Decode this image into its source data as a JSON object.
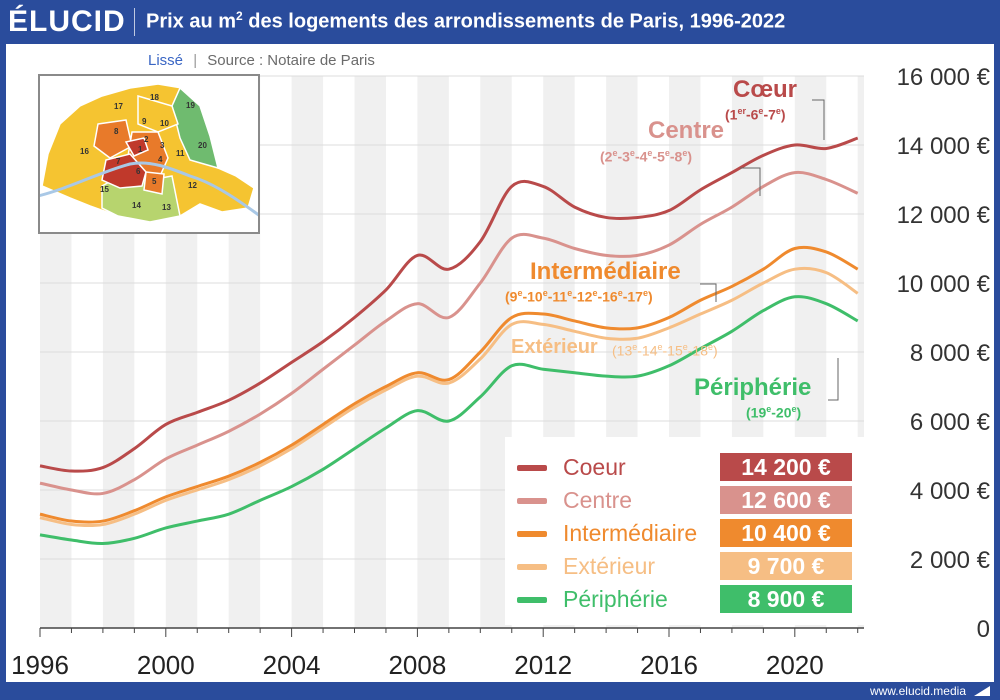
{
  "header": {
    "logo": "ÉLUCID",
    "title_pre": "Prix au m",
    "title_sup": "2",
    "title_post": " des logements des arrondissements de Paris, 1996-2022"
  },
  "subtitle": {
    "smoothing": "Lissé",
    "separator": "|",
    "source": "Source : Notaire de Paris"
  },
  "footer": {
    "site": "www.elucid.media"
  },
  "colors": {
    "coeur": "#b94a4a",
    "centre": "#d9928d",
    "intermediaire": "#ef8a2e",
    "exterieur": "#f6be84",
    "peripherie": "#3fbe6a"
  },
  "map": {
    "labels": [
      "17",
      "18",
      "19",
      "8",
      "9",
      "10",
      "16",
      "2",
      "3",
      "20",
      "1",
      "4",
      "11",
      "7",
      "6",
      "5",
      "12",
      "15",
      "14",
      "13"
    ]
  },
  "zones": {
    "coeur": {
      "name": "Cœur",
      "parts": [
        [
          "1",
          "er"
        ],
        [
          "6",
          "e"
        ],
        [
          "7",
          "e"
        ]
      ]
    },
    "centre": {
      "name": "Centre",
      "parts": [
        [
          "2",
          "e"
        ],
        [
          "3",
          "e"
        ],
        [
          "4",
          "e"
        ],
        [
          "5",
          "e"
        ],
        [
          "8",
          "e"
        ]
      ]
    },
    "intermediaire": {
      "name": "Intermédiaire",
      "parts": [
        [
          "9",
          "e"
        ],
        [
          "10",
          "e"
        ],
        [
          "11",
          "e"
        ],
        [
          "12",
          "e"
        ],
        [
          "16",
          "e"
        ],
        [
          "17",
          "e"
        ]
      ]
    },
    "exterieur": {
      "name": "Extérieur",
      "parts": [
        [
          "13",
          "e"
        ],
        [
          "14",
          "e"
        ],
        [
          "15",
          "e"
        ],
        [
          "18",
          "e"
        ]
      ]
    },
    "peripherie": {
      "name": "Périphérie",
      "parts": [
        [
          "19",
          "e"
        ],
        [
          "20",
          "e"
        ]
      ]
    }
  },
  "legend": [
    {
      "name": "Coeur",
      "value": "14 200 €",
      "key": "coeur"
    },
    {
      "name": "Centre",
      "value": "12 600 €",
      "key": "centre"
    },
    {
      "name": "Intermédiaire",
      "value": "10 400 €",
      "key": "intermediaire"
    },
    {
      "name": "Extérieur",
      "value": "9 700 €",
      "key": "exterieur"
    },
    {
      "name": "Périphérie",
      "value": "8 900 €",
      "key": "peripherie"
    }
  ],
  "chart_data": {
    "type": "line",
    "title": "Prix au m² des logements des arrondissements de Paris, 1996-2022",
    "xlim": [
      1996,
      2022.2
    ],
    "ylim": [
      0,
      16000
    ],
    "x_ticks": [
      1996,
      2000,
      2004,
      2008,
      2012,
      2016,
      2020
    ],
    "y_ticks": [
      0,
      2000,
      4000,
      6000,
      8000,
      10000,
      12000,
      14000,
      16000
    ],
    "y_tick_labels": [
      "0",
      "2 000 €",
      "4 000 €",
      "6 000 €",
      "8 000 €",
      "10 000 €",
      "12 000 €",
      "14 000 €",
      "16 000 €"
    ],
    "x": [
      1996,
      1997,
      1998,
      1999,
      2000,
      2001,
      2002,
      2003,
      2004,
      2005,
      2006,
      2007,
      2008,
      2009,
      2010,
      2011,
      2012,
      2013,
      2014,
      2015,
      2016,
      2017,
      2018,
      2019,
      2020,
      2021,
      2022
    ],
    "series": [
      {
        "key": "coeur",
        "name": "Coeur",
        "values": [
          4700,
          4550,
          4650,
          5200,
          5900,
          6250,
          6600,
          7100,
          7700,
          8300,
          9000,
          9800,
          10800,
          10400,
          11200,
          12800,
          12800,
          12200,
          11900,
          11900,
          12100,
          12700,
          13200,
          13700,
          14000,
          13900,
          14200
        ]
      },
      {
        "key": "centre",
        "name": "Centre",
        "values": [
          4200,
          4000,
          3900,
          4300,
          4900,
          5300,
          5700,
          6200,
          6800,
          7500,
          8200,
          8900,
          9400,
          9000,
          10000,
          11300,
          11300,
          11000,
          10800,
          10800,
          11100,
          11700,
          12200,
          12800,
          13200,
          13000,
          12600
        ]
      },
      {
        "key": "intermediaire",
        "name": "Intermédiaire",
        "values": [
          3300,
          3100,
          3100,
          3400,
          3800,
          4100,
          4400,
          4800,
          5300,
          5900,
          6500,
          7000,
          7400,
          7200,
          8000,
          9000,
          9100,
          8900,
          8700,
          8700,
          9000,
          9500,
          9900,
          10400,
          11000,
          10900,
          10400
        ]
      },
      {
        "key": "exterieur",
        "name": "Extérieur",
        "values": [
          3200,
          3000,
          3000,
          3300,
          3700,
          4000,
          4300,
          4700,
          5200,
          5800,
          6400,
          6900,
          7300,
          7100,
          7800,
          8800,
          8800,
          8600,
          8400,
          8400,
          8700,
          9100,
          9500,
          10000,
          10400,
          10300,
          9700
        ]
      },
      {
        "key": "peripherie",
        "name": "Périphérie",
        "values": [
          2700,
          2550,
          2450,
          2600,
          2900,
          3100,
          3300,
          3700,
          4100,
          4600,
          5200,
          5800,
          6300,
          6000,
          6700,
          7600,
          7500,
          7400,
          7300,
          7300,
          7600,
          8100,
          8600,
          9200,
          9600,
          9400,
          8900
        ]
      }
    ],
    "legend_position": "bottom-right",
    "grid": true
  }
}
